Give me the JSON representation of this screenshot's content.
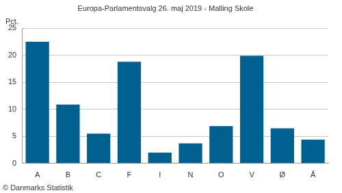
{
  "chart_data": {
    "type": "bar",
    "title": "Europa-Parlamentsvalg 26. maj 2019 - Malling Skole",
    "ylabel": "Pct.",
    "source": "© Danmarks Statistik",
    "categories": [
      "A",
      "B",
      "C",
      "F",
      "I",
      "N",
      "O",
      "V",
      "Ø",
      "Å"
    ],
    "values": [
      22.5,
      10.9,
      5.5,
      18.8,
      2.0,
      3.7,
      6.9,
      19.9,
      6.5,
      4.4
    ],
    "color": "#00608f",
    "ylim": [
      0,
      25
    ],
    "yticks": [
      0,
      5,
      10,
      15,
      20,
      25
    ],
    "grid": true
  }
}
